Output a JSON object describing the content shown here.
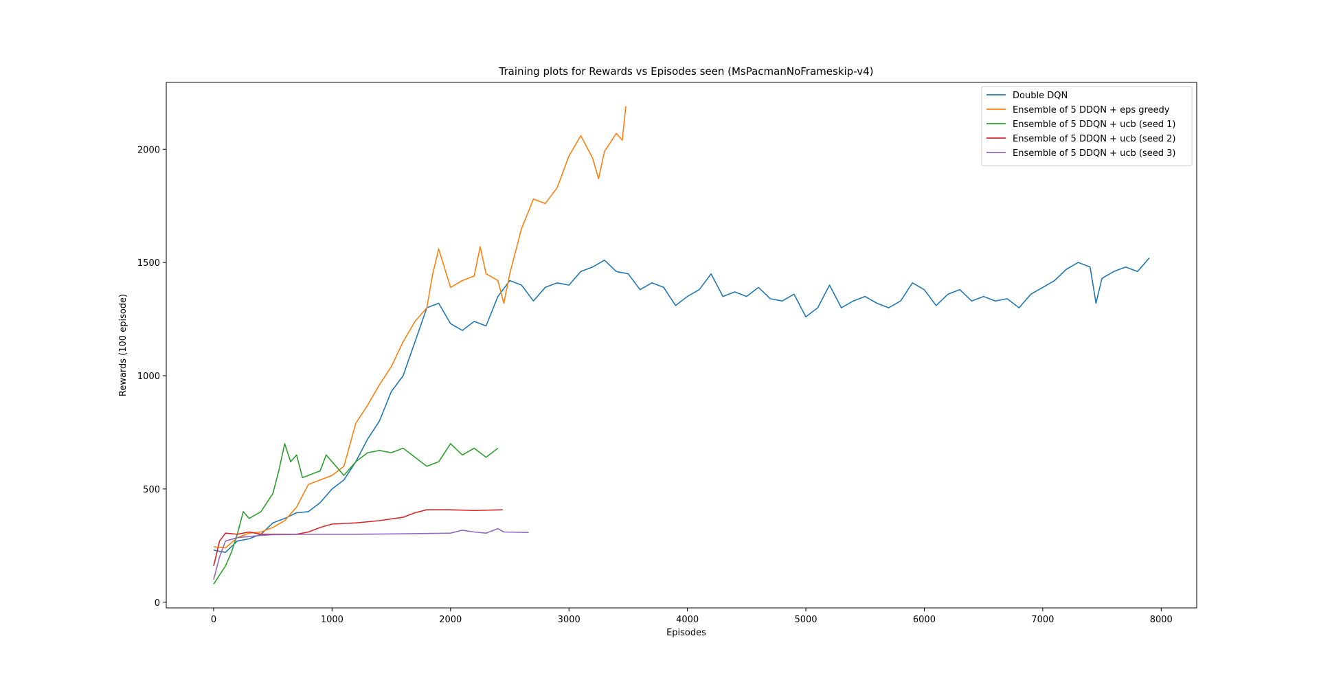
{
  "chart_data": {
    "type": "line",
    "title": "Training plots for Rewards vs Episodes seen (MsPacmanNoFrameskip-v4)",
    "xlabel": "Episodes",
    "ylabel": "Rewards (100 episode)",
    "xlim": [
      -400,
      8300
    ],
    "ylim": [
      -25,
      2295
    ],
    "xticks": [
      0,
      1000,
      2000,
      3000,
      4000,
      5000,
      6000,
      7000,
      8000
    ],
    "yticks": [
      0,
      500,
      1000,
      1500,
      2000
    ],
    "grid": false,
    "legend_position": "top-right",
    "series": [
      {
        "name": "Double DQN",
        "color": "#1f77b4",
        "points": [
          [
            0,
            230
          ],
          [
            100,
            220
          ],
          [
            200,
            270
          ],
          [
            300,
            280
          ],
          [
            400,
            300
          ],
          [
            500,
            350
          ],
          [
            600,
            370
          ],
          [
            700,
            395
          ],
          [
            800,
            400
          ],
          [
            900,
            440
          ],
          [
            1000,
            500
          ],
          [
            1100,
            540
          ],
          [
            1200,
            620
          ],
          [
            1300,
            720
          ],
          [
            1400,
            800
          ],
          [
            1500,
            930
          ],
          [
            1600,
            1000
          ],
          [
            1700,
            1150
          ],
          [
            1800,
            1300
          ],
          [
            1900,
            1320
          ],
          [
            2000,
            1230
          ],
          [
            2100,
            1200
          ],
          [
            2200,
            1240
          ],
          [
            2300,
            1220
          ],
          [
            2400,
            1350
          ],
          [
            2500,
            1420
          ],
          [
            2600,
            1400
          ],
          [
            2700,
            1330
          ],
          [
            2800,
            1390
          ],
          [
            2900,
            1410
          ],
          [
            3000,
            1400
          ],
          [
            3100,
            1460
          ],
          [
            3200,
            1480
          ],
          [
            3300,
            1510
          ],
          [
            3400,
            1460
          ],
          [
            3500,
            1450
          ],
          [
            3600,
            1380
          ],
          [
            3700,
            1410
          ],
          [
            3800,
            1390
          ],
          [
            3900,
            1310
          ],
          [
            4000,
            1350
          ],
          [
            4100,
            1380
          ],
          [
            4200,
            1450
          ],
          [
            4300,
            1350
          ],
          [
            4400,
            1370
          ],
          [
            4500,
            1350
          ],
          [
            4600,
            1390
          ],
          [
            4700,
            1340
          ],
          [
            4800,
            1330
          ],
          [
            4900,
            1360
          ],
          [
            5000,
            1260
          ],
          [
            5100,
            1300
          ],
          [
            5200,
            1400
          ],
          [
            5300,
            1300
          ],
          [
            5400,
            1330
          ],
          [
            5500,
            1350
          ],
          [
            5600,
            1320
          ],
          [
            5700,
            1300
          ],
          [
            5800,
            1330
          ],
          [
            5900,
            1410
          ],
          [
            6000,
            1380
          ],
          [
            6100,
            1310
          ],
          [
            6200,
            1360
          ],
          [
            6300,
            1380
          ],
          [
            6400,
            1330
          ],
          [
            6500,
            1350
          ],
          [
            6600,
            1330
          ],
          [
            6700,
            1340
          ],
          [
            6800,
            1300
          ],
          [
            6900,
            1360
          ],
          [
            7000,
            1390
          ],
          [
            7100,
            1420
          ],
          [
            7200,
            1470
          ],
          [
            7300,
            1500
          ],
          [
            7400,
            1480
          ],
          [
            7450,
            1320
          ],
          [
            7500,
            1430
          ],
          [
            7600,
            1460
          ],
          [
            7700,
            1480
          ],
          [
            7800,
            1460
          ],
          [
            7900,
            1520
          ]
        ]
      },
      {
        "name": "Ensemble of 5 DDQN + eps greedy",
        "color": "#ff7f0e",
        "points": [
          [
            0,
            245
          ],
          [
            100,
            240
          ],
          [
            200,
            285
          ],
          [
            300,
            305
          ],
          [
            400,
            310
          ],
          [
            500,
            330
          ],
          [
            600,
            360
          ],
          [
            700,
            420
          ],
          [
            800,
            520
          ],
          [
            900,
            540
          ],
          [
            1000,
            560
          ],
          [
            1100,
            600
          ],
          [
            1200,
            790
          ],
          [
            1300,
            870
          ],
          [
            1400,
            960
          ],
          [
            1500,
            1040
          ],
          [
            1600,
            1150
          ],
          [
            1700,
            1240
          ],
          [
            1800,
            1300
          ],
          [
            1850,
            1450
          ],
          [
            1900,
            1560
          ],
          [
            2000,
            1390
          ],
          [
            2100,
            1420
          ],
          [
            2200,
            1440
          ],
          [
            2250,
            1570
          ],
          [
            2300,
            1450
          ],
          [
            2400,
            1420
          ],
          [
            2450,
            1320
          ],
          [
            2500,
            1450
          ],
          [
            2600,
            1650
          ],
          [
            2700,
            1780
          ],
          [
            2800,
            1760
          ],
          [
            2900,
            1830
          ],
          [
            3000,
            1970
          ],
          [
            3100,
            2060
          ],
          [
            3200,
            1960
          ],
          [
            3250,
            1870
          ],
          [
            3300,
            1990
          ],
          [
            3400,
            2070
          ],
          [
            3450,
            2040
          ],
          [
            3480,
            2190
          ]
        ]
      },
      {
        "name": "Ensemble of 5 DDQN + ucb (seed 1)",
        "color": "#2ca02c",
        "points": [
          [
            0,
            80
          ],
          [
            50,
            120
          ],
          [
            100,
            160
          ],
          [
            150,
            220
          ],
          [
            200,
            300
          ],
          [
            250,
            400
          ],
          [
            300,
            370
          ],
          [
            400,
            400
          ],
          [
            500,
            480
          ],
          [
            550,
            580
          ],
          [
            600,
            700
          ],
          [
            650,
            620
          ],
          [
            700,
            650
          ],
          [
            750,
            550
          ],
          [
            800,
            560
          ],
          [
            900,
            580
          ],
          [
            950,
            650
          ],
          [
            1000,
            620
          ],
          [
            1100,
            560
          ],
          [
            1200,
            620
          ],
          [
            1300,
            660
          ],
          [
            1400,
            670
          ],
          [
            1500,
            660
          ],
          [
            1600,
            680
          ],
          [
            1700,
            640
          ],
          [
            1800,
            600
          ],
          [
            1900,
            620
          ],
          [
            2000,
            700
          ],
          [
            2100,
            650
          ],
          [
            2200,
            680
          ],
          [
            2300,
            640
          ],
          [
            2400,
            680
          ]
        ]
      },
      {
        "name": "Ensemble of 5 DDQN + ucb (seed 2)",
        "color": "#d62728",
        "points": [
          [
            0,
            160
          ],
          [
            50,
            270
          ],
          [
            100,
            305
          ],
          [
            200,
            300
          ],
          [
            300,
            310
          ],
          [
            400,
            300
          ],
          [
            500,
            300
          ],
          [
            600,
            300
          ],
          [
            700,
            300
          ],
          [
            800,
            310
          ],
          [
            900,
            330
          ],
          [
            1000,
            345
          ],
          [
            1200,
            350
          ],
          [
            1400,
            360
          ],
          [
            1600,
            375
          ],
          [
            1700,
            395
          ],
          [
            1800,
            408
          ],
          [
            2000,
            408
          ],
          [
            2200,
            405
          ],
          [
            2440,
            408
          ]
        ]
      },
      {
        "name": "Ensemble of 5 DDQN + ucb (seed 3)",
        "color": "#9467bd",
        "points": [
          [
            0,
            100
          ],
          [
            50,
            200
          ],
          [
            100,
            270
          ],
          [
            200,
            285
          ],
          [
            300,
            290
          ],
          [
            400,
            295
          ],
          [
            500,
            298
          ],
          [
            800,
            300
          ],
          [
            1200,
            300
          ],
          [
            1600,
            302
          ],
          [
            2000,
            305
          ],
          [
            2100,
            318
          ],
          [
            2200,
            310
          ],
          [
            2300,
            305
          ],
          [
            2400,
            325
          ],
          [
            2450,
            310
          ],
          [
            2660,
            308
          ]
        ]
      }
    ]
  }
}
